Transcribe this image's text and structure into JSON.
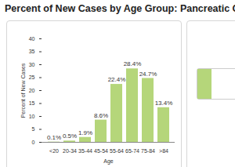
{
  "chart_data": {
    "type": "bar",
    "title": "Percent of New Cases by Age Group: Pancreatic Cancer",
    "x_label": "Age",
    "y_label": "Percent of New Cases",
    "categories": [
      "<20",
      "20-34",
      "35-44",
      "45-54",
      "55-64",
      "65-74",
      "75-84",
      ">84"
    ],
    "values": [
      0.1,
      0.5,
      1.9,
      8.6,
      22.4,
      28.4,
      24.7,
      13.4
    ],
    "value_labels": [
      "0.1%",
      "0.5%",
      "1.9%",
      "8.6%",
      "22.4%",
      "28.4%",
      "24.7%",
      "13.4%"
    ],
    "data_labels": true,
    "color": "#b5d67a",
    "ylim": [
      0,
      40
    ],
    "yticks": [
      0,
      5,
      10,
      15,
      20,
      25,
      30,
      35,
      40
    ],
    "grid": false
  }
}
